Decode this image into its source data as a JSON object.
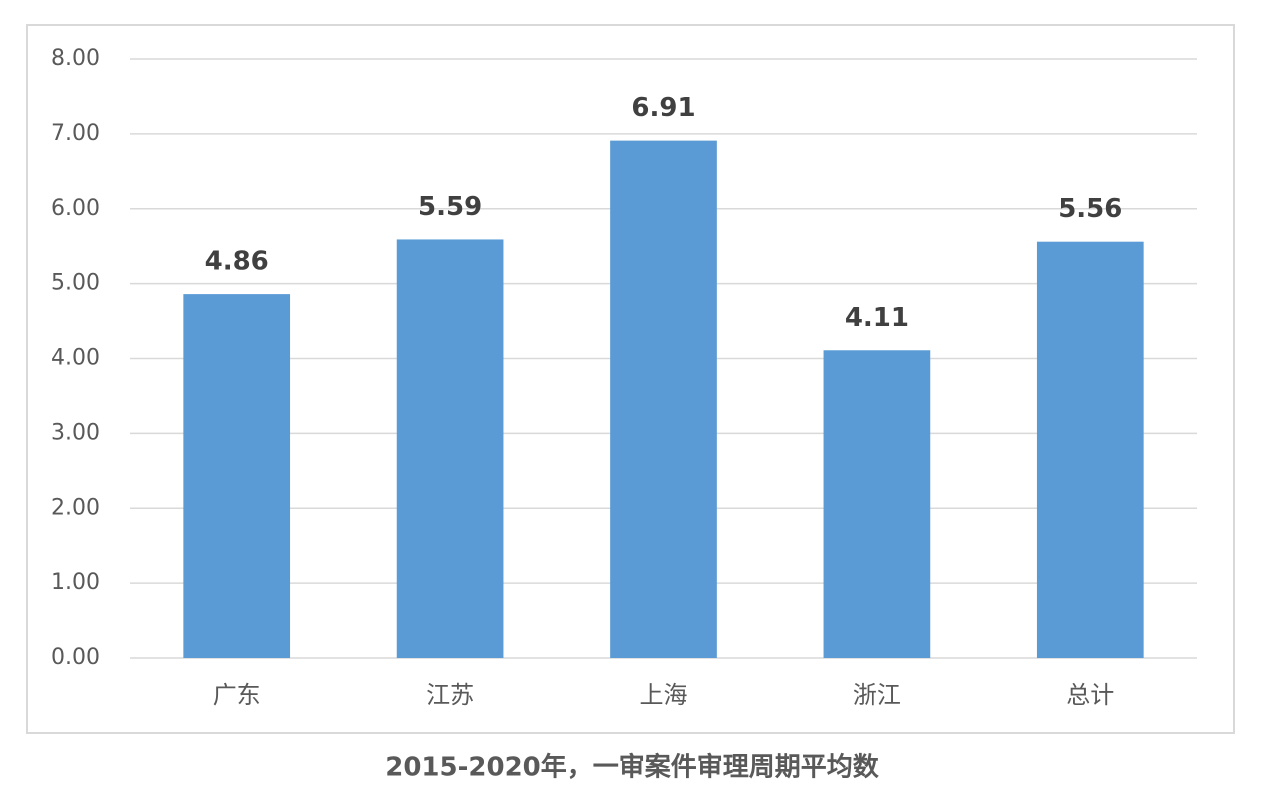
{
  "chart_data": {
    "type": "bar",
    "title": "2015-2020年，一审案件审理周期平均数",
    "categories": [
      "广东",
      "江苏",
      "上海",
      "浙江",
      "总计"
    ],
    "values": [
      4.86,
      5.59,
      6.91,
      4.11,
      5.56
    ],
    "color": "#5b9bd5",
    "ylim": [
      0,
      8
    ],
    "yticks": [
      {
        "value": 0,
        "label": "0.00"
      },
      {
        "value": 1,
        "label": "1.00"
      },
      {
        "value": 2,
        "label": "2.00"
      },
      {
        "value": 3,
        "label": "3.00"
      },
      {
        "value": 4,
        "label": "4.00"
      },
      {
        "value": 5,
        "label": "5.00"
      },
      {
        "value": 6,
        "label": "6.00"
      },
      {
        "value": 7,
        "label": "7.00"
      },
      {
        "value": 8,
        "label": "8.00"
      }
    ],
    "grid": true
  }
}
